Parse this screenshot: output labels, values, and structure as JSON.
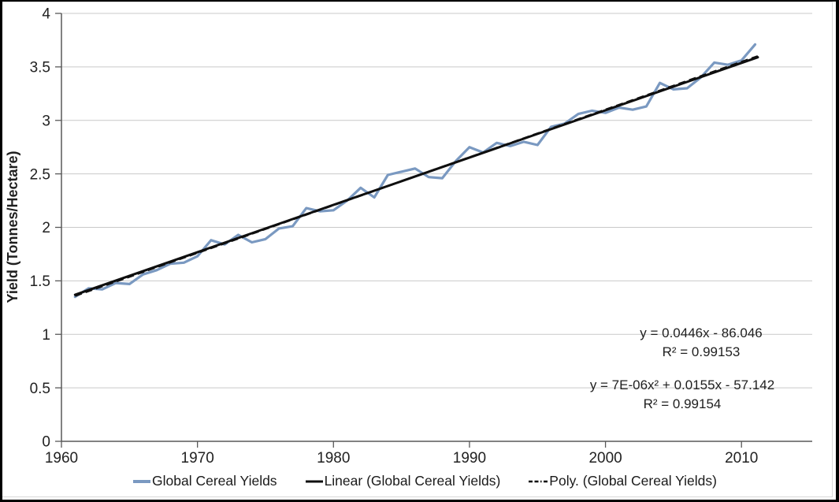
{
  "colors": {
    "series_blue": "#7A99C1",
    "trend_black": "#0f0f0f",
    "gridline": "#c9c9c9",
    "axis": "#595959",
    "text": "#212121",
    "chart_frame": "#d8d8d8"
  },
  "chart_data": {
    "type": "line",
    "title": "",
    "xlabel": "",
    "ylabel": "Yield (Tonnes/Hectare)",
    "xlim": [
      1960,
      2015.2
    ],
    "ylim": [
      0,
      4
    ],
    "x_ticks": [
      1960,
      1970,
      1980,
      1990,
      2000,
      2010
    ],
    "y_ticks": [
      0,
      0.5,
      1,
      1.5,
      2,
      2.5,
      3,
      3.5,
      4
    ],
    "y_tick_labels": [
      "0",
      "0.5",
      "1",
      "1.5",
      "2",
      "2.5",
      "3",
      "3.5",
      "4"
    ],
    "grid": "horizontal",
    "legend_position": "bottom",
    "series": [
      {
        "name": "Global Cereal Yields",
        "type": "line",
        "x": [
          1961,
          1962,
          1963,
          1964,
          1965,
          1966,
          1967,
          1968,
          1969,
          1970,
          1971,
          1972,
          1973,
          1974,
          1975,
          1976,
          1977,
          1978,
          1979,
          1980,
          1981,
          1982,
          1983,
          1984,
          1985,
          1986,
          1987,
          1988,
          1989,
          1990,
          1991,
          1992,
          1993,
          1994,
          1995,
          1996,
          1997,
          1998,
          1999,
          2000,
          2001,
          2002,
          2003,
          2004,
          2005,
          2006,
          2007,
          2008,
          2009,
          2010,
          2011
        ],
        "values": [
          1.35,
          1.43,
          1.42,
          1.48,
          1.47,
          1.56,
          1.6,
          1.66,
          1.67,
          1.73,
          1.88,
          1.84,
          1.93,
          1.86,
          1.89,
          1.99,
          2.01,
          2.18,
          2.15,
          2.16,
          2.25,
          2.37,
          2.28,
          2.49,
          2.52,
          2.55,
          2.47,
          2.46,
          2.62,
          2.75,
          2.7,
          2.79,
          2.76,
          2.8,
          2.77,
          2.94,
          2.97,
          3.06,
          3.09,
          3.07,
          3.12,
          3.1,
          3.13,
          3.35,
          3.29,
          3.3,
          3.4,
          3.54,
          3.52,
          3.56,
          3.71
        ]
      },
      {
        "name": "Linear (Global Cereal Yields)",
        "type": "trendline-linear",
        "x": [
          1961,
          2011.2
        ],
        "values": [
          1.37,
          3.59
        ]
      },
      {
        "name": "Poly. (Global Cereal Yields)",
        "type": "trendline-polynomial",
        "dashed": true,
        "x": [
          1961,
          1986.1,
          2011.2
        ],
        "values": [
          1.36,
          2.48,
          3.6
        ]
      }
    ],
    "annotations": [
      {
        "name": "linear-trendline-equation",
        "lines": [
          "y = 0.0446x - 86.046",
          "R² = 0.99153"
        ]
      },
      {
        "name": "poly-trendline-equation",
        "lines": [
          "y = 7E-06x² + 0.0155x - 57.142",
          "R² = 0.99154"
        ]
      }
    ]
  }
}
